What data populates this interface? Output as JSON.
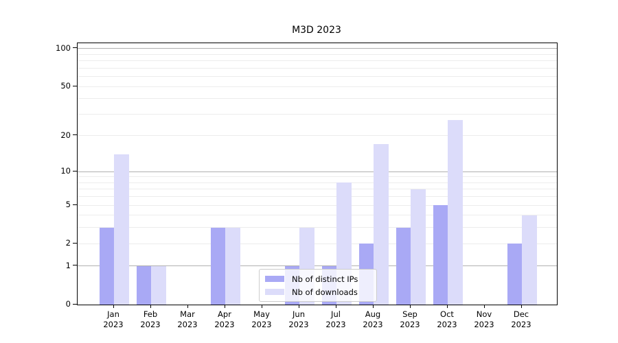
{
  "title": "M3D 2023",
  "chart_data": {
    "type": "bar",
    "title": "M3D 2023",
    "categories": [
      "Jan",
      "Feb",
      "Mar",
      "Apr",
      "May",
      "Jun",
      "Jul",
      "Aug",
      "Sep",
      "Oct",
      "Nov",
      "Dec"
    ],
    "x_tick_second_line": "2023",
    "series": [
      {
        "name": "Nb of distinct IPs",
        "color": "#a9a9f5",
        "values": [
          3,
          1,
          0,
          3,
          0,
          1,
          1,
          2,
          3,
          5,
          0,
          2
        ]
      },
      {
        "name": "Nb of downloads",
        "color": "#dcdcfa",
        "values": [
          14,
          1,
          0,
          3,
          0,
          3,
          8,
          17,
          7,
          27,
          0,
          4
        ]
      }
    ],
    "xlabel": "",
    "ylabel": "",
    "y_scale": "log10(1+x)",
    "ylim": [
      0,
      110
    ],
    "y_ticks": [
      0,
      1,
      2,
      5,
      10,
      20,
      50,
      100
    ],
    "y_major_gridlines": [
      1,
      10,
      100
    ],
    "y_minor_gridlines": [
      2,
      3,
      4,
      5,
      6,
      7,
      8,
      9,
      20,
      30,
      40,
      50,
      60,
      70,
      80,
      90
    ],
    "grid": true,
    "legend_position": "lower center",
    "colors": {
      "major_grid": "#b0b0b0",
      "minor_grid": "#ececec",
      "spine": "#000000",
      "legend_border": "#cccccc"
    }
  }
}
